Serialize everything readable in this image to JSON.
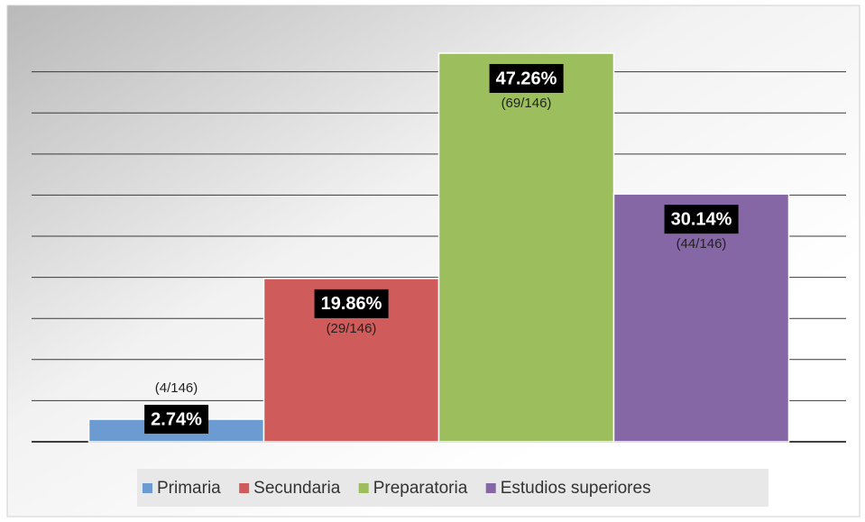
{
  "chart_data": {
    "type": "bar",
    "categories": [
      "Primaria",
      "Secundaria",
      "Preparatoria",
      "Estudios superiores"
    ],
    "values": [
      2.74,
      19.86,
      47.26,
      30.14
    ],
    "value_labels": [
      "2.74%",
      "19.86%",
      "47.26%",
      "30.14%"
    ],
    "count_labels": [
      "(4/146)",
      "(29/146)",
      "(69/146)",
      "(44/146)"
    ],
    "colors": [
      "#6b9bd1",
      "#cf5c5a",
      "#9dbe5c",
      "#8567a6"
    ],
    "ylim": [
      0,
      47.7
    ],
    "yticks": [
      0,
      5,
      10,
      15,
      20,
      25,
      30,
      35,
      40,
      45
    ],
    "grid": true,
    "legend": "bottom"
  }
}
